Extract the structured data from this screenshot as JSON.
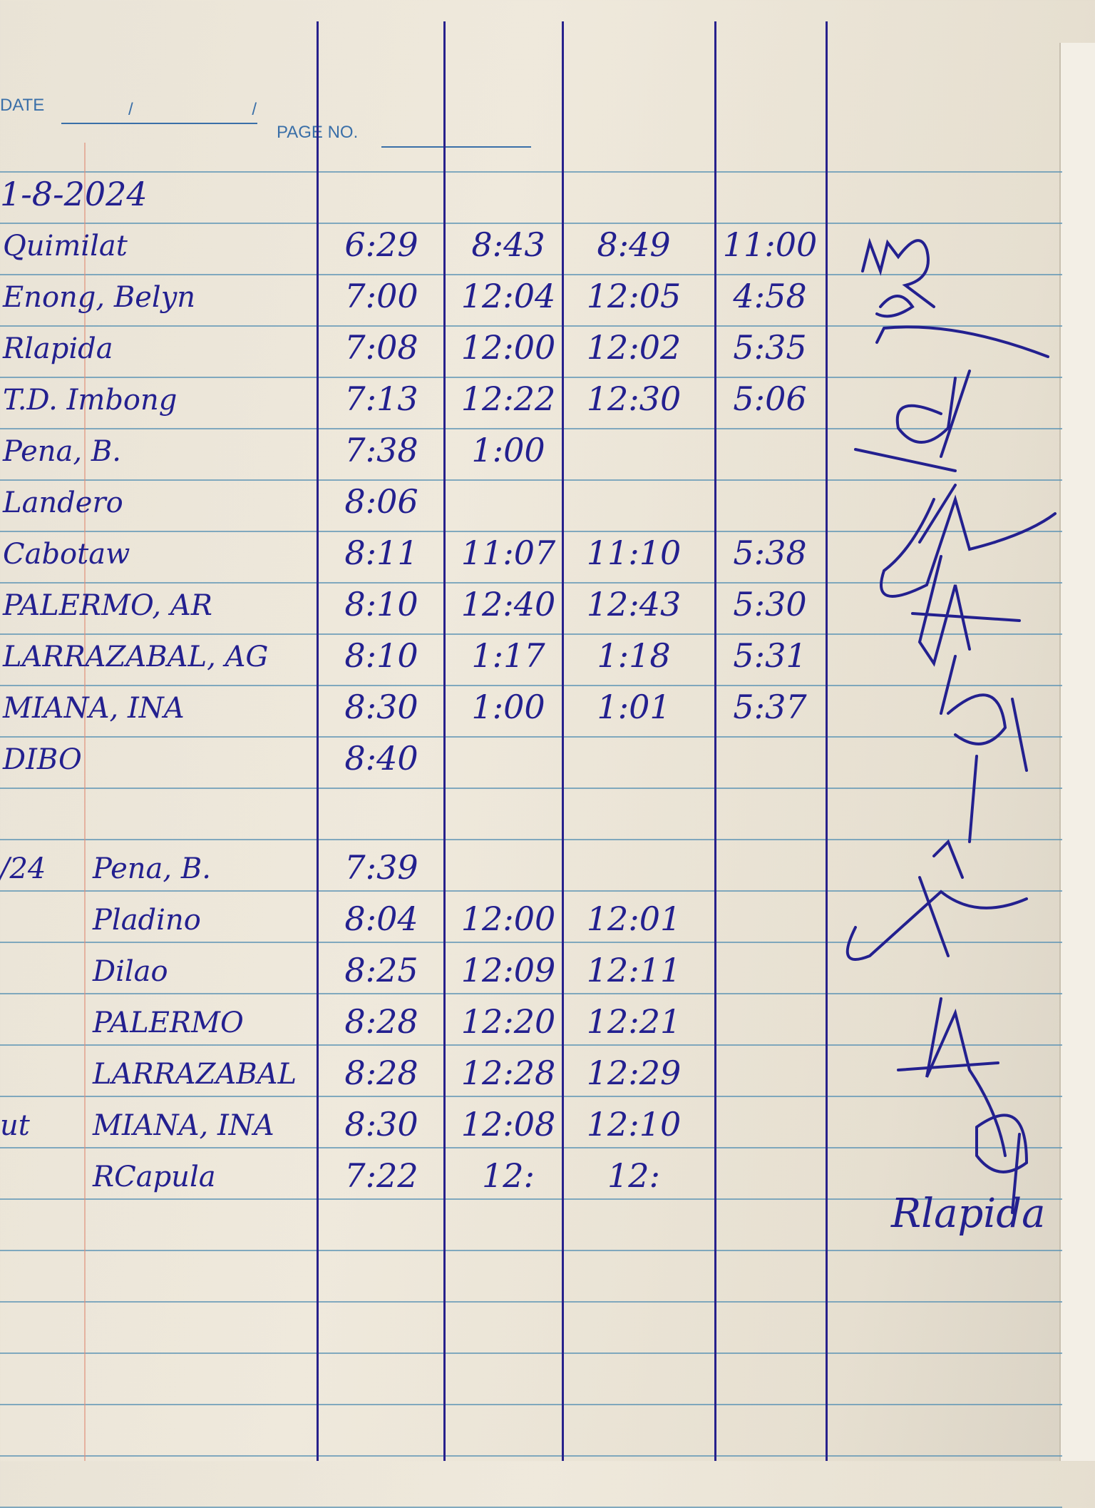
{
  "header": {
    "date_label": "DATE",
    "date_value": "/ /",
    "page_label": "PAGE NO."
  },
  "block1": {
    "date": "1-8-2024",
    "rows": [
      {
        "name": "Quimilat",
        "t1": "6:29",
        "t2": "8:43",
        "t3": "8:49",
        "t4": "11:00",
        "note": ""
      },
      {
        "name": "Enong, Belyn",
        "t1": "7:00",
        "t2": "12:04",
        "t3": "12:05",
        "t4": "4:58",
        "note": ""
      },
      {
        "name": "Rlapida",
        "t1": "7:08",
        "t2": "12:00",
        "t3": "12:02",
        "t4": "5:35",
        "note": ""
      },
      {
        "name": "T.D. Imbong",
        "t1": "7:13",
        "t2": "12:22",
        "t3": "12:30",
        "t4": "5:06",
        "note": ""
      },
      {
        "name": "Pena, B.",
        "t1": "7:38",
        "t2": "1:00",
        "t3": "",
        "t4": "",
        "note": ""
      },
      {
        "name": "Landero",
        "t1": "8:06",
        "t2": "",
        "t3": "",
        "t4": "",
        "note": ""
      },
      {
        "name": "Cabotaw",
        "t1": "8:11",
        "t2": "11:07",
        "t3": "11:10",
        "t4": "5:38",
        "note": ""
      },
      {
        "name": "PALERMO, AR",
        "t1": "8:10",
        "t2": "12:40",
        "t3": "12:43",
        "t4": "5:30",
        "note": ""
      },
      {
        "name": "LARRAZABAL, AG",
        "t1": "8:10",
        "t2": "1:17",
        "t3": "1:18",
        "t4": "5:31",
        "note": ""
      },
      {
        "name": "MIANA, INA",
        "t1": "8:30",
        "t2": "1:00",
        "t3": "1:01",
        "t4": "5:37",
        "note": ""
      },
      {
        "name": "DIBO",
        "t1": "8:40",
        "t2": "",
        "t3": "",
        "t4": "",
        "note": ""
      }
    ]
  },
  "block2": {
    "date": "/24",
    "rows": [
      {
        "name": "Pena, B.",
        "t1": "7:39",
        "t2": "",
        "t3": "",
        "t4": "",
        "note": ""
      },
      {
        "name": "Pladino",
        "t1": "8:04",
        "t2": "12:00",
        "t3": "12:01",
        "t4": "",
        "note": ""
      },
      {
        "name": "Dilao",
        "t1": "8:25",
        "t2": "12:09",
        "t3": "12:11",
        "t4": "",
        "note": ""
      },
      {
        "name": "PALERMO",
        "t1": "8:28",
        "t2": "12:20",
        "t3": "12:21",
        "t4": "",
        "note": ""
      },
      {
        "name": "LARRAZABAL",
        "t1": "8:28",
        "t2": "12:28",
        "t3": "12:29",
        "t4": "",
        "note": ""
      },
      {
        "name": "MIANA, INA",
        "t1": "8:30",
        "t2": "12:08",
        "t3": "12:10",
        "t4": "",
        "note": "ut"
      },
      {
        "name": "RCapula",
        "t1": "7:22",
        "t2": "12:",
        "t3": "12:",
        "t4": "",
        "note": ""
      }
    ]
  },
  "signatures": {
    "last_signature_text": "Rlapida"
  },
  "colors": {
    "ink": "#23208f",
    "paper": "#ece6d8",
    "rule": "#5b93b4",
    "margin": "#e0907a"
  }
}
